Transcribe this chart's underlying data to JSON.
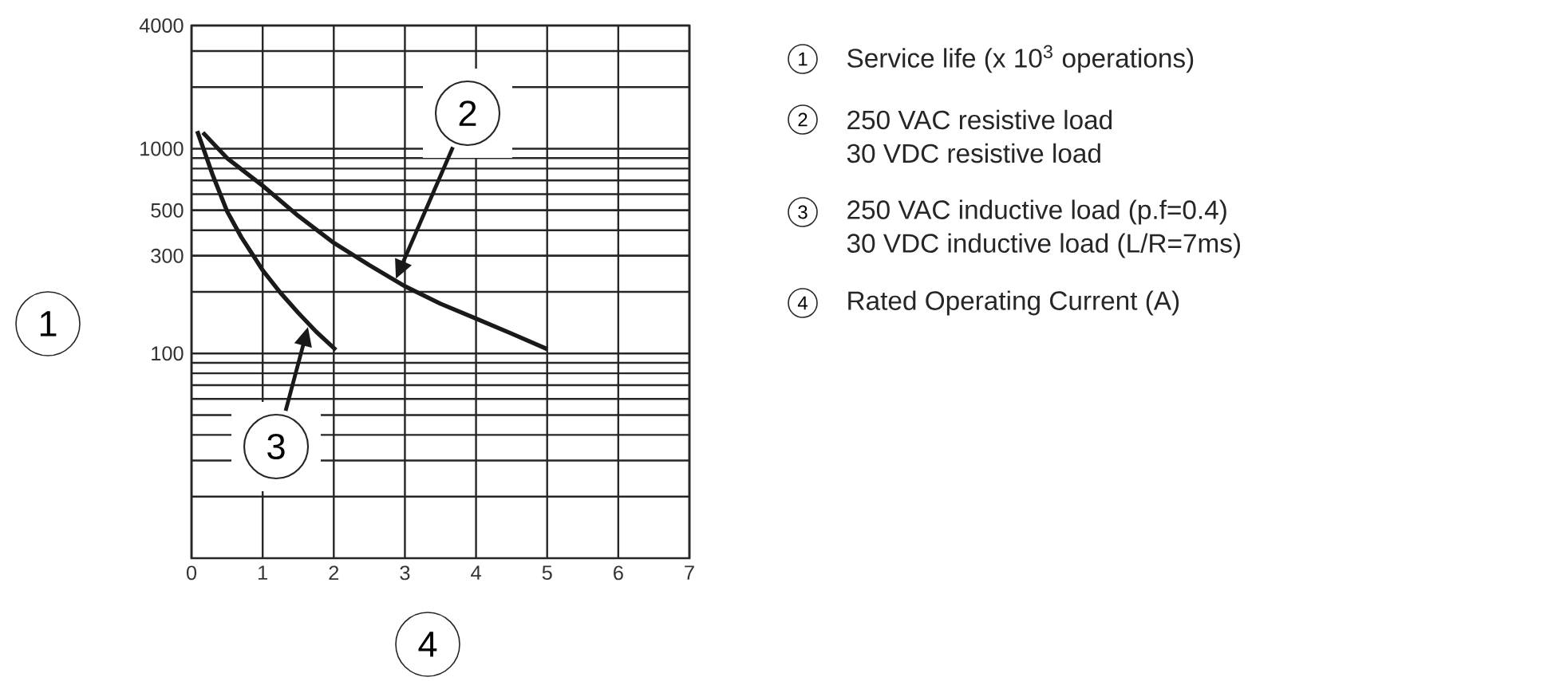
{
  "chart_data": {
    "type": "line",
    "log": "y",
    "xlim": [
      0,
      7
    ],
    "ylim": [
      10,
      4000
    ],
    "xticks": [
      0,
      1,
      2,
      3,
      4,
      5,
      6,
      7
    ],
    "yticks": [
      100,
      300,
      500,
      1000,
      4000
    ],
    "grid": true,
    "marker": "none",
    "line_style": "solid",
    "xlabel": "4",
    "ylabel": "1",
    "series": [
      {
        "color": "#1a1a1a",
        "x": [
          0.16,
          0.5,
          1,
          1.5,
          2,
          2.5,
          3,
          3.5,
          4,
          4.5,
          5
        ],
        "values": [
          1200,
          900,
          660,
          470,
          347,
          270,
          213,
          175,
          148,
          125,
          105
        ]
      },
      {
        "color": "#1a1a1a",
        "x": [
          0.08,
          0.3,
          0.5,
          0.7,
          0.87,
          1,
          1.25,
          1.5,
          1.75,
          2.03
        ],
        "values": [
          1220,
          740,
          495,
          370,
          300,
          255,
          198,
          158,
          128,
          104
        ]
      }
    ],
    "annotations": [
      "2",
      "3",
      "1",
      "Service life (x 10$^{3}$ operations)",
      "2",
      "250 VAC resistive load",
      "30 VDC resistive load",
      "3",
      "250 VAC inductive load (p.f=0.4)",
      "30 VDC inductive load (L/R=7ms)",
      "4",
      "Rated Operating Current (A)"
    ]
  }
}
